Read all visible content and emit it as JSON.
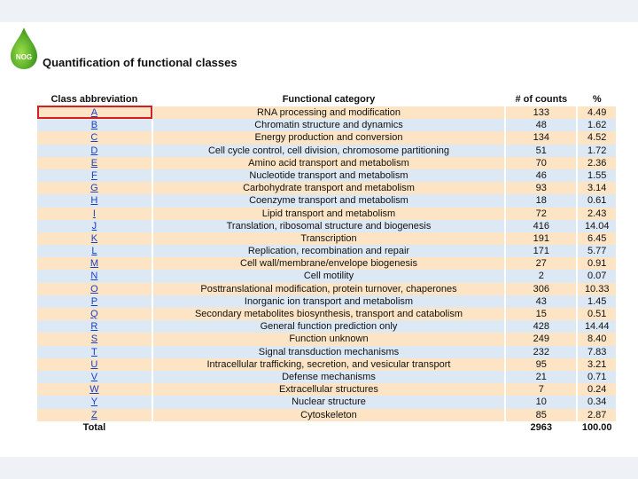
{
  "logo": {
    "text": "NOG"
  },
  "title": "Quantification of functional classes",
  "table": {
    "header": [
      "Class abbreviation",
      "Functional category",
      "# of counts",
      "%"
    ],
    "rows": [
      [
        "A",
        "RNA processing and modification",
        133,
        "4.49"
      ],
      [
        "B",
        "Chromatin structure and dynamics",
        48,
        "1.62"
      ],
      [
        "C",
        "Energy production and conversion",
        134,
        "4.52"
      ],
      [
        "D",
        "Cell cycle control, cell division, chromosome partitioning",
        51,
        "1.72"
      ],
      [
        "E",
        "Amino acid transport and metabolism",
        70,
        "2.36"
      ],
      [
        "F",
        "Nucleotide transport and metabolism",
        46,
        "1.55"
      ],
      [
        "G",
        "Carbohydrate transport and metabolism",
        93,
        "3.14"
      ],
      [
        "H",
        "Coenzyme transport and metabolism",
        18,
        "0.61"
      ],
      [
        "I",
        "Lipid transport and metabolism",
        72,
        "2.43"
      ],
      [
        "J",
        "Translation, ribosomal structure and biogenesis",
        416,
        "14.04"
      ],
      [
        "K",
        "Transcription",
        191,
        "6.45"
      ],
      [
        "L",
        "Replication, recombination and repair",
        171,
        "5.77"
      ],
      [
        "M",
        "Cell wall/membrane/envelope biogenesis",
        27,
        "0.91"
      ],
      [
        "N",
        "Cell motility",
        2,
        "0.07"
      ],
      [
        "O",
        "Posttranslational modification, protein turnover, chaperones",
        306,
        "10.33"
      ],
      [
        "P",
        "Inorganic ion transport and metabolism",
        43,
        "1.45"
      ],
      [
        "Q",
        "Secondary metabolites biosynthesis, transport and catabolism",
        15,
        "0.51"
      ],
      [
        "R",
        "General function prediction only",
        428,
        "14.44"
      ],
      [
        "S",
        "Function unknown",
        249,
        "8.40"
      ],
      [
        "T",
        "Signal transduction mechanisms",
        232,
        "7.83"
      ],
      [
        "U",
        "Intracellular trafficking, secretion, and vesicular transport",
        95,
        "3.21"
      ],
      [
        "V",
        "Defense mechanisms",
        21,
        "0.71"
      ],
      [
        "W",
        "Extracellular structures",
        7,
        "0.24"
      ],
      [
        "Y",
        "Nuclear structure",
        10,
        "0.34"
      ],
      [
        "Z",
        "Cytoskeleton",
        85,
        "2.87"
      ]
    ],
    "total": [
      "Total",
      2963,
      "100.00"
    ]
  }
}
